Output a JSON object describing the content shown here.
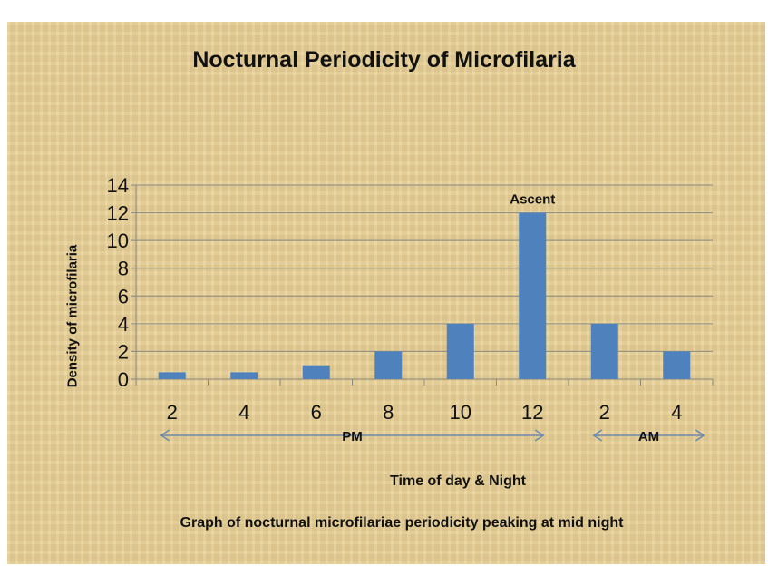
{
  "chart_data": {
    "type": "bar",
    "title": "Nocturnal Periodicity of Microfilaria",
    "xlabel": "Time of day & Night",
    "ylabel": "Density of microfilaria",
    "categories": [
      "2",
      "4",
      "6",
      "8",
      "10",
      "12",
      "2",
      "4"
    ],
    "values": [
      0.5,
      0.5,
      1,
      2,
      4,
      12,
      4,
      2
    ],
    "ylim": [
      0,
      14
    ],
    "yticks": [
      "0",
      "2",
      "4",
      "6",
      "8",
      "10",
      "12",
      "14"
    ],
    "grid": true,
    "bar_color": "#4f81bd",
    "annotations": [
      {
        "text": "Ascent",
        "category_index": 5
      }
    ],
    "period_labels": [
      {
        "text": "PM",
        "from": 0,
        "to": 5
      },
      {
        "text": "AM",
        "from": 6,
        "to": 7
      }
    ],
    "caption": "Graph of  nocturnal  microfilariae periodicity peaking at mid night"
  }
}
